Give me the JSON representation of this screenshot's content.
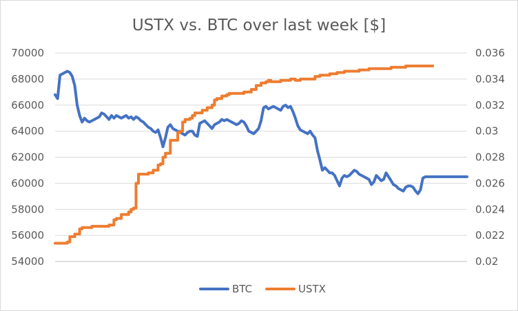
{
  "chart_data": {
    "type": "line",
    "title": "USTX vs. BTC over last week [$]",
    "xlabel": "",
    "ylabel": "",
    "grid": true,
    "legend_position": "bottom",
    "y_left": {
      "lim": [
        54000,
        70000
      ],
      "ticks": [
        "70000",
        "68000",
        "66000",
        "64000",
        "62000",
        "60000",
        "58000",
        "56000",
        "54000"
      ]
    },
    "y_right": {
      "lim": [
        0.02,
        0.036
      ],
      "ticks": [
        "0.036",
        "0.034",
        "0.032",
        "0.03",
        "0.028",
        "0.026",
        "0.024",
        "0.022",
        "0.02"
      ]
    },
    "series": [
      {
        "name": "BTC",
        "axis": "left",
        "color": "#4472C4",
        "x": [
          0,
          1,
          2,
          3,
          4,
          5,
          6,
          7,
          8,
          9,
          10,
          11,
          12,
          13,
          14,
          15,
          16,
          17,
          18,
          19,
          20,
          21,
          22,
          23,
          24,
          25,
          26,
          27,
          28,
          29,
          30,
          31,
          32,
          33,
          34,
          35,
          36,
          37,
          38,
          39,
          40,
          41,
          42,
          43,
          44,
          45,
          46,
          47,
          48,
          49,
          50,
          51,
          52,
          53,
          54,
          55,
          56,
          57,
          58,
          59,
          60,
          61,
          62,
          63,
          64,
          65,
          66,
          67,
          68,
          69,
          70,
          71,
          72,
          73,
          74,
          75,
          76,
          77,
          78,
          79,
          80,
          81,
          82,
          83,
          84,
          85,
          86,
          87,
          88,
          89,
          90,
          91,
          92,
          93,
          94,
          95,
          96,
          97,
          98,
          99,
          100,
          101,
          102,
          103,
          104,
          105,
          106,
          107,
          108,
          109,
          110,
          111,
          112,
          113,
          114,
          115,
          116,
          117,
          118,
          119,
          120,
          121,
          122,
          123,
          124,
          125,
          126,
          127,
          128,
          129,
          130,
          131,
          132,
          133,
          134,
          135,
          136,
          137,
          138,
          139,
          140,
          141,
          142,
          143,
          144,
          145,
          146,
          147,
          148,
          149,
          150,
          151,
          152,
          153,
          154,
          155,
          156,
          157,
          158,
          159,
          160,
          161,
          162,
          163,
          164,
          165,
          166,
          167,
          168
        ],
        "values": [
          66800,
          66500,
          68300,
          68400,
          68500,
          68600,
          68500,
          68200,
          67500,
          66000,
          65200,
          64700,
          65000,
          64800,
          64700,
          64800,
          64900,
          65000,
          65100,
          65400,
          65300,
          65100,
          64900,
          65200,
          65000,
          65200,
          65100,
          65000,
          65100,
          65200,
          65000,
          65100,
          64900,
          65100,
          65000,
          64800,
          64700,
          64500,
          64300,
          64200,
          64000,
          63900,
          64100,
          63500,
          62800,
          63500,
          64300,
          64500,
          64200,
          64100,
          64000,
          63900,
          63800,
          63700,
          63900,
          64000,
          64000,
          63700,
          63600,
          64600,
          64700,
          64800,
          64600,
          64400,
          64200,
          64500,
          64600,
          64700,
          64900,
          64800,
          64900,
          64800,
          64700,
          64600,
          64500,
          64600,
          64800,
          64700,
          64400,
          64000,
          63900,
          63800,
          64000,
          64200,
          64800,
          65800,
          65900,
          65700,
          65800,
          65900,
          65800,
          65700,
          65600,
          65900,
          66000,
          65800,
          65900,
          65500,
          65000,
          64400,
          64100,
          64000,
          63900,
          63800,
          64000,
          63700,
          63500,
          62500,
          61800,
          61000,
          61200,
          61000,
          60800,
          60800,
          60600,
          60200,
          59800,
          60400,
          60600,
          60500,
          60600,
          60800,
          61000,
          60900,
          60700,
          60600,
          60500,
          60400,
          60300,
          59900,
          60100,
          60600,
          60400,
          60200,
          60300,
          60800,
          60500,
          60200,
          59900,
          59800,
          59600,
          59500,
          59400,
          59700,
          59800,
          59800,
          59700,
          59400,
          59200,
          59500,
          60400,
          60500,
          60500,
          60500,
          60500,
          60500,
          60500,
          60500,
          60500,
          60500,
          60500,
          60500,
          60500,
          60500,
          60500,
          60500,
          60500,
          60500,
          60500
        ]
      },
      {
        "name": "USTX",
        "axis": "right",
        "color": "#ED7D31",
        "x": [
          0,
          4,
          5,
          6,
          8,
          10,
          11,
          12,
          15,
          16,
          17,
          22,
          24,
          25,
          26,
          27,
          30,
          31,
          32,
          33,
          34,
          38,
          40,
          42,
          43,
          44,
          45,
          47,
          50,
          51,
          52,
          53,
          55,
          56,
          57,
          60,
          62,
          64,
          65,
          66,
          68,
          70,
          71,
          72,
          75,
          77,
          78,
          80,
          82,
          84,
          86,
          87,
          88,
          92,
          94,
          96,
          98,
          100,
          104,
          106,
          108,
          112,
          115,
          118,
          120,
          122,
          124,
          128,
          130,
          135,
          137,
          140,
          143,
          146,
          150,
          154
        ],
        "values": [
          0.0214,
          0.0214,
          0.0215,
          0.0219,
          0.0221,
          0.0225,
          0.0226,
          0.0226,
          0.0227,
          0.0227,
          0.0227,
          0.0228,
          0.0232,
          0.0233,
          0.0233,
          0.0236,
          0.0238,
          0.024,
          0.0241,
          0.026,
          0.0267,
          0.0268,
          0.027,
          0.0274,
          0.0275,
          0.028,
          0.0283,
          0.0293,
          0.0299,
          0.03,
          0.0307,
          0.0309,
          0.031,
          0.0312,
          0.0314,
          0.0316,
          0.0318,
          0.032,
          0.0324,
          0.0325,
          0.0327,
          0.0328,
          0.0329,
          0.0329,
          0.0329,
          0.033,
          0.033,
          0.0332,
          0.0335,
          0.0337,
          0.0338,
          0.0339,
          0.0338,
          0.0339,
          0.0339,
          0.034,
          0.0339,
          0.034,
          0.034,
          0.0342,
          0.0343,
          0.0344,
          0.0345,
          0.0346,
          0.0346,
          0.0346,
          0.0347,
          0.0348,
          0.0348,
          0.0348,
          0.0349,
          0.0349,
          0.035,
          0.035,
          0.035,
          0.035
        ]
      }
    ]
  }
}
